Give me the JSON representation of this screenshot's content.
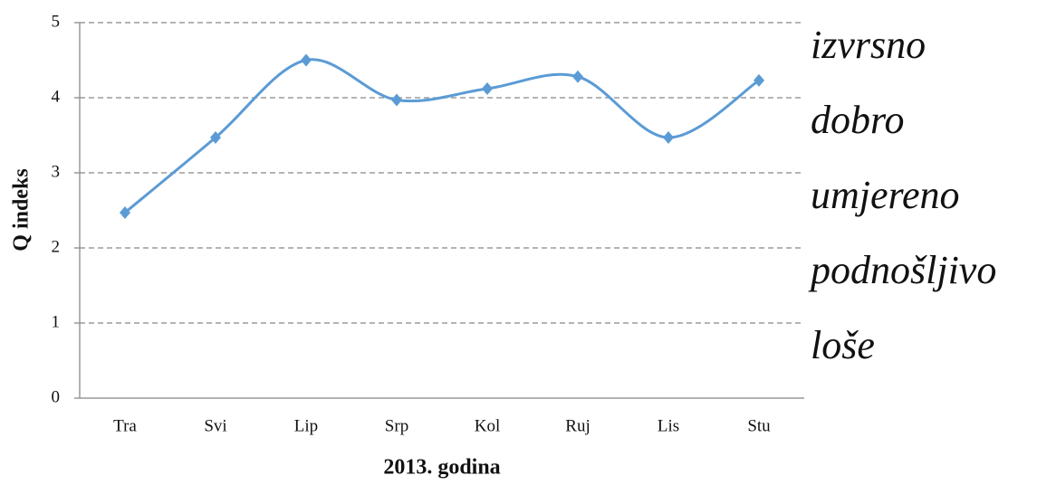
{
  "chart_data": {
    "type": "line",
    "x_label": "2013. godina",
    "y_label": "Q indeks",
    "categories": [
      "Tra",
      "Svi",
      "Lip",
      "Srp",
      "Kol",
      "Ruj",
      "Lis",
      "Stu"
    ],
    "series": [
      {
        "name": "Q indeks",
        "color": "#5b9bd5",
        "values": [
          2.47,
          3.47,
          4.5,
          3.97,
          4.12,
          4.28,
          3.47,
          4.23
        ]
      }
    ],
    "ylim": [
      0,
      5
    ],
    "yticks": [
      0,
      1,
      2,
      3,
      4,
      5
    ],
    "grid": true,
    "smooth": true,
    "legend": false,
    "annotations": [
      "izvrsno",
      "dobro",
      "umjereno",
      "podnošljivo",
      "loše"
    ]
  }
}
